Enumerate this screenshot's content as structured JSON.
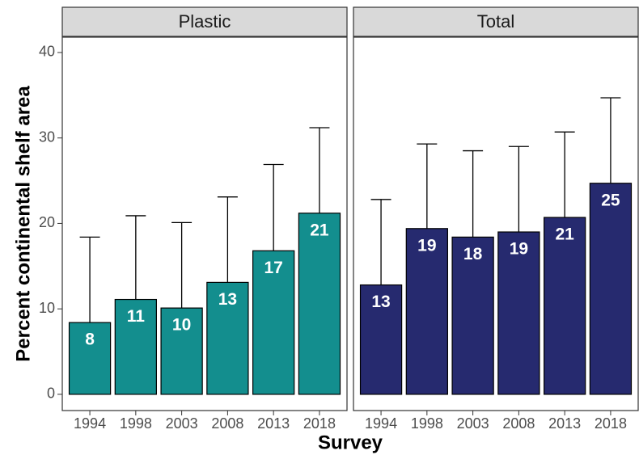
{
  "chart_data": {
    "type": "bar",
    "ylabel": "Percent continental shelf area",
    "xlabel": "Survey",
    "categories": [
      "1994",
      "1998",
      "2003",
      "2008",
      "2013",
      "2018"
    ],
    "ylim": [
      -1.9,
      41.7
    ],
    "yticks": [
      0,
      10,
      20,
      30,
      40
    ],
    "panels": [
      {
        "title": "Plastic",
        "color": "#138e8e",
        "values": [
          8.4,
          11.1,
          10.1,
          13.1,
          16.8,
          21.2
        ],
        "value_labels": [
          "8",
          "11",
          "10",
          "13",
          "17",
          "21"
        ],
        "errors": [
          10.0,
          9.8,
          10.0,
          10.0,
          10.1,
          10.0
        ]
      },
      {
        "title": "Total",
        "color": "#262a6f",
        "values": [
          12.8,
          19.4,
          18.4,
          19.0,
          20.7,
          24.7
        ],
        "value_labels": [
          "13",
          "19",
          "18",
          "19",
          "21",
          "25"
        ],
        "errors": [
          10.0,
          9.9,
          10.1,
          10.0,
          10.0,
          10.0
        ]
      }
    ]
  }
}
